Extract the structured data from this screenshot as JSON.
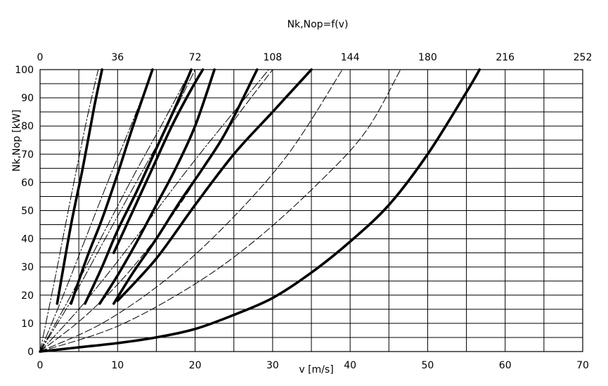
{
  "chart_data": {
    "type": "line",
    "title": "Nk,Nop=f(v)",
    "xlabel": "v [m/s]",
    "ylabel": "Nk,Nop [kW]",
    "xlim": [
      0,
      70
    ],
    "ylim": [
      0,
      100
    ],
    "x_ticks": [
      0,
      10,
      20,
      30,
      40,
      50,
      60,
      70
    ],
    "y_ticks": [
      0,
      10,
      20,
      30,
      40,
      50,
      60,
      70,
      80,
      90,
      100
    ],
    "x_minor_grid": [
      5,
      15,
      25,
      35,
      45,
      55,
      65
    ],
    "y_minor_grid": [
      5,
      15,
      25,
      35,
      45,
      55,
      65,
      75,
      85,
      95
    ],
    "top_axis": {
      "ticks": [
        "0",
        "36",
        "72",
        "108",
        "144",
        "180",
        "216",
        "252"
      ],
      "scale": 3.6
    },
    "grid": true,
    "series": [
      {
        "style": "bold",
        "x": [
          2.2,
          4.0,
          5.5,
          7.0,
          8.0
        ],
        "y": [
          17,
          45,
          65,
          87,
          100
        ]
      },
      {
        "style": "bold",
        "x": [
          4.0,
          6.0,
          8.0,
          10.0,
          12.0,
          14.5
        ],
        "y": [
          17,
          33,
          47,
          63,
          80,
          100
        ]
      },
      {
        "style": "bold",
        "x": [
          5.8,
          8.0,
          10.0,
          12.5,
          15.0,
          17.5,
          19.5
        ],
        "y": [
          17,
          30,
          43,
          57,
          72,
          87,
          100
        ]
      },
      {
        "style": "bold",
        "x": [
          9.5,
          12.0,
          14.5,
          17.0,
          19.5,
          21.0
        ],
        "y": [
          35,
          50,
          65,
          80,
          93,
          100
        ]
      },
      {
        "style": "bold",
        "x": [
          7.7,
          10.0,
          12.5,
          15.0,
          17.5,
          20.0,
          22.5
        ],
        "y": [
          17,
          27,
          39,
          52,
          65,
          80,
          100
        ]
      },
      {
        "style": "bold",
        "x": [
          9.5,
          12.0,
          15.0,
          18.0,
          21.0,
          24.0,
          28.0
        ],
        "y": [
          17,
          28,
          40,
          53,
          65,
          78,
          100
        ]
      },
      {
        "style": "bold",
        "x": [
          10.0,
          15.0,
          20.0,
          25.0,
          30.0,
          35.0
        ],
        "y": [
          18,
          33,
          52,
          70,
          85,
          100
        ]
      },
      {
        "style": "bold",
        "x": [
          0,
          5,
          10,
          15,
          20,
          25,
          30,
          35,
          40,
          45,
          50,
          55,
          56.7
        ],
        "y": [
          0,
          1.5,
          3,
          5,
          8,
          13,
          19,
          28,
          39,
          52,
          70,
          92,
          100
        ]
      },
      {
        "style": "dashdot",
        "x": [
          0,
          2.0,
          4.0,
          6.0,
          7.5
        ],
        "y": [
          0,
          27,
          55,
          82,
          100
        ]
      },
      {
        "style": "dashdot",
        "x": [
          0,
          3.0,
          6.0,
          9.0,
          12.0,
          14.5
        ],
        "y": [
          0,
          20,
          41,
          62,
          82,
          100
        ]
      },
      {
        "style": "dashdot",
        "x": [
          0,
          4.0,
          8.0,
          12.0,
          16.0,
          19.5
        ],
        "y": [
          0,
          20,
          41,
          62,
          82,
          100
        ]
      },
      {
        "style": "dashdot",
        "x": [
          0,
          4.0,
          8.0,
          12.0,
          16.0,
          20.0
        ],
        "y": [
          0,
          18,
          38,
          58,
          78,
          100
        ]
      },
      {
        "style": "dashdot",
        "x": [
          0,
          5.0,
          10.0,
          15.0,
          20.0,
          25.0,
          29.5
        ],
        "y": [
          0,
          15,
          32,
          50,
          68,
          85,
          100
        ]
      },
      {
        "style": "dashed",
        "x": [
          0,
          6.0,
          12.0,
          18.0,
          24.0,
          30.0
        ],
        "y": [
          0,
          13,
          30,
          52,
          78,
          100
        ]
      },
      {
        "style": "dashed",
        "x": [
          0,
          8.0,
          16.0,
          24.0,
          32.0,
          39.0
        ],
        "y": [
          0,
          10,
          25,
          45,
          70,
          100
        ]
      },
      {
        "style": "dashed",
        "x": [
          0,
          10.0,
          20.0,
          28.0,
          36.0,
          42.0,
          46.5
        ],
        "y": [
          0,
          9,
          24,
          40,
          60,
          78,
          100
        ]
      }
    ]
  }
}
